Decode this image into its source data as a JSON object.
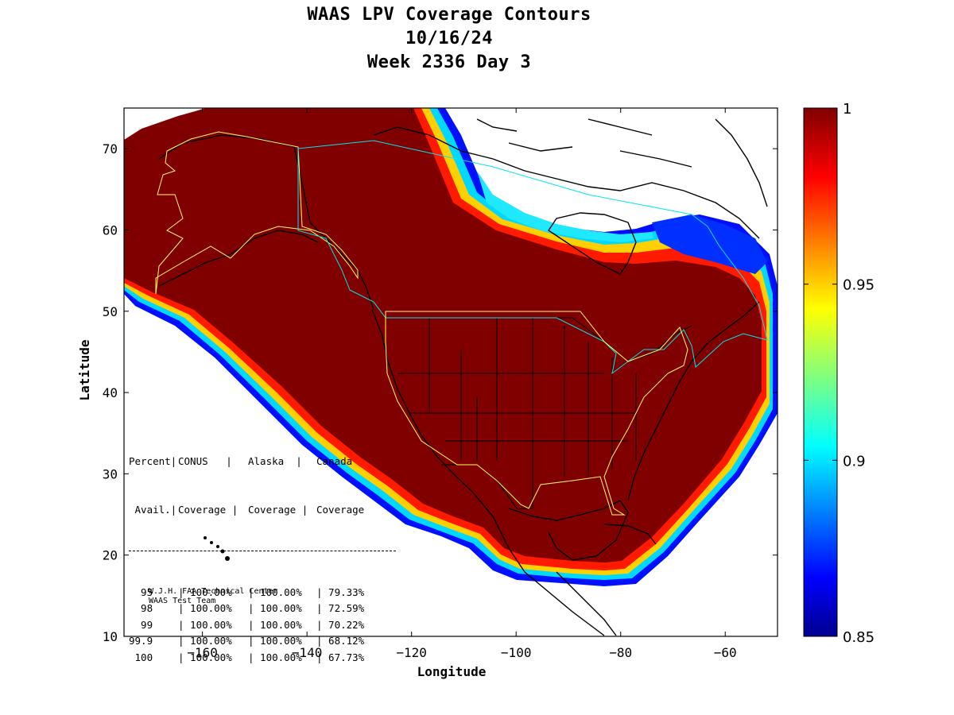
{
  "title": {
    "line1": "WAAS LPV Coverage Contours",
    "line2": "10/16/24",
    "line3": "Week 2336 Day 3"
  },
  "axes": {
    "xlabel": "Longitude",
    "ylabel": "Latitude",
    "xlim": [
      -175,
      -50
    ],
    "ylim": [
      10,
      75
    ],
    "xticks": [
      -160,
      -140,
      -120,
      -100,
      -80,
      -60
    ],
    "yticks": [
      10,
      20,
      30,
      40,
      50,
      60,
      70
    ]
  },
  "colorbar": {
    "min": 0.85,
    "max": 1,
    "ticks": [
      "1",
      "0.95",
      "0.9",
      "0.85"
    ],
    "colormap": "jet"
  },
  "colors": {
    "high_coverage": "#800000",
    "contour_boundary_conus_alaska": "#ffff66",
    "contour_boundary_canada": "#00e5ee",
    "coastline": "#000000"
  },
  "table": {
    "header1": [
      "Percent|",
      "CONUS   |",
      "Alaska  |",
      "Canada"
    ],
    "header2": [
      " Avail.|",
      "Coverage |",
      "Coverage |",
      "Coverage"
    ],
    "rows": [
      {
        "avail": "  95",
        "conus": "| 100.00%",
        "alaska": "| 100.00%",
        "canada": "| 79.33%"
      },
      {
        "avail": "  98",
        "conus": "| 100.00%",
        "alaska": "| 100.00%",
        "canada": "| 72.59%"
      },
      {
        "avail": "  99",
        "conus": "| 100.00%",
        "alaska": "| 100.00%",
        "canada": "| 70.22%"
      },
      {
        "avail": "99.9",
        "conus": "| 100.00%",
        "alaska": "| 100.00%",
        "canada": "| 68.12%"
      },
      {
        "avail": " 100",
        "conus": "| 100.00%",
        "alaska": "| 100.00%",
        "canada": "| 67.73%"
      }
    ]
  },
  "credits": {
    "line1": "W.J.H. FAA Technical Center",
    "line2": "WAAS Test Team"
  }
}
